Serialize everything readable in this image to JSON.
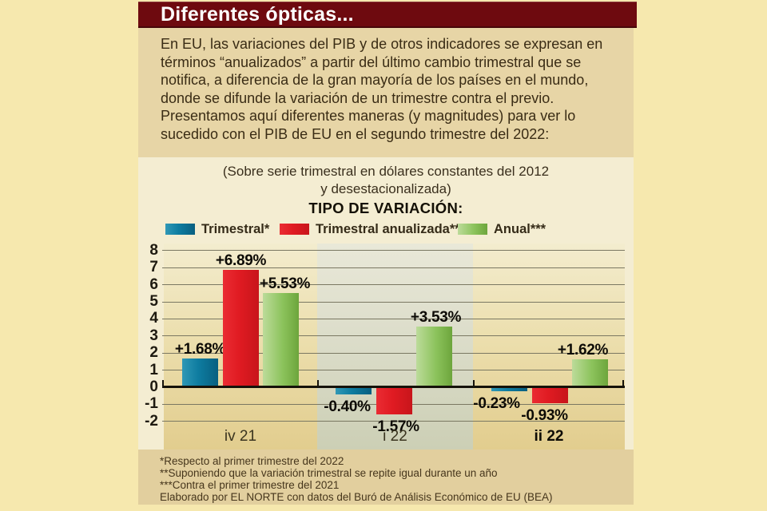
{
  "header": {
    "title": "Diferentes ópticas..."
  },
  "intro": {
    "text": "En EU, las variaciones del PIB y de otros indicadores se expresan en términos “anualizados” a partir del último cambio trimestral que se notifica, a diferencia de la gran mayoría de los países en el mundo, donde se difunde la variación de un trimestre contra el previo. Presentamos aquí diferentes maneras (y magnitudes) para ver lo sucedido con el PIB de EU en el segundo trimestre del 2022:"
  },
  "chart_data": {
    "type": "bar",
    "subtitle_lines": [
      "(Sobre serie trimestral en dólares constantes del 2012",
      "y desestacionalizada)"
    ],
    "legend_title": "TIPO DE VARIACIÓN:",
    "legend_position": "top",
    "categories": [
      "iv 21",
      "i 22",
      "ii 22"
    ],
    "categories_emphasis": [
      false,
      false,
      true
    ],
    "series": [
      {
        "name": "Trimestral*",
        "color": "#0e7ca0",
        "values": [
          1.68,
          -0.4,
          -0.23
        ],
        "labels": [
          "+1.68%",
          "-0.40%",
          "-0.23%"
        ]
      },
      {
        "name": "Trimestral anualizada**",
        "color": "#e01b22",
        "values": [
          6.89,
          -1.57,
          -0.93
        ],
        "labels": [
          "+6.89%",
          "-1.57%",
          "-0.93%"
        ]
      },
      {
        "name": "Anual***",
        "color": "#8cc35c",
        "values": [
          5.53,
          3.53,
          1.62
        ],
        "labels": [
          "+5.53%",
          "+3.53%",
          "+1.62%"
        ]
      }
    ],
    "ylim": [
      -2,
      8
    ],
    "yticks": [
      8,
      7,
      6,
      5,
      4,
      3,
      2,
      1,
      0,
      -1,
      -2
    ],
    "grid": true
  },
  "footnotes": {
    "lines": [
      "*Respecto al primer trimestre del 2022",
      "**Suponiendo que la variación trimestral se repite igual durante un año",
      "***Contra el primer trimestre del 2021",
      "Elaborado por EL NORTE con datos del Buró de Análisis Económico de EU (BEA)"
    ]
  },
  "colors": {
    "page_bg": "#f6e8ae",
    "header_bg": "#6e0a0f",
    "series_teal": "#0e7ca0",
    "series_red": "#e01b22",
    "series_green": "#8cc35c"
  }
}
